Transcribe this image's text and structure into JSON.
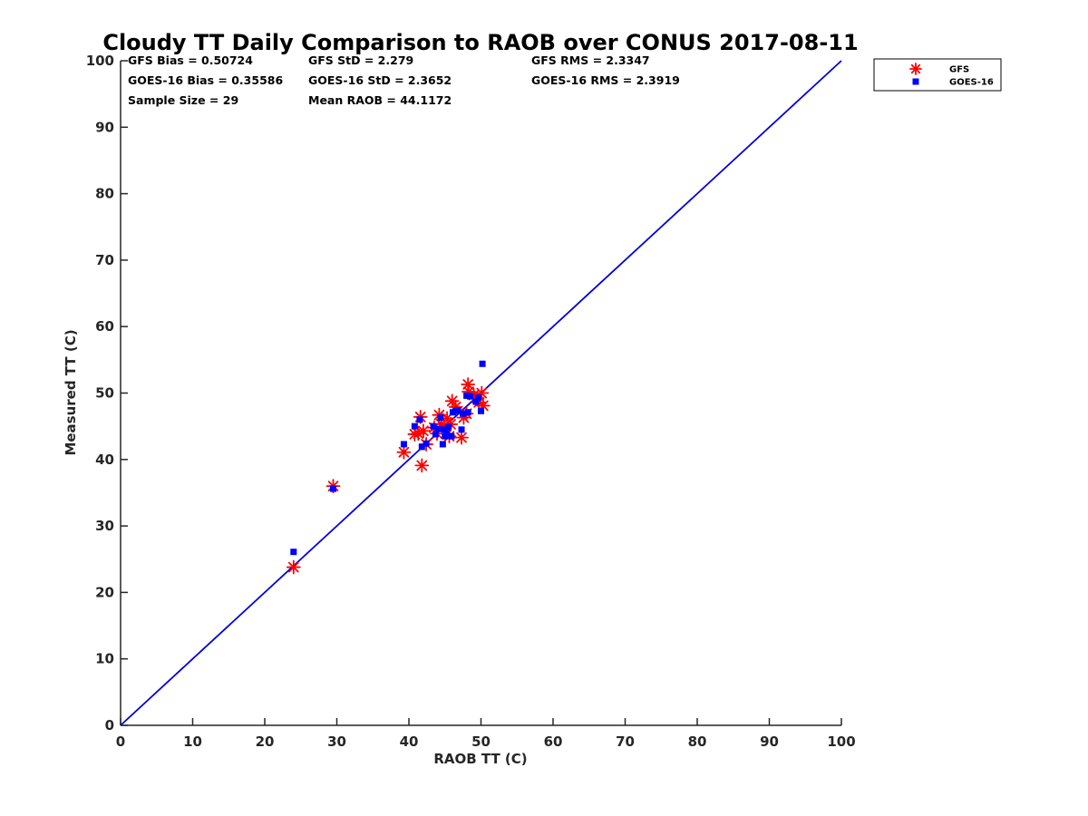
{
  "chart_data": {
    "type": "scatter",
    "title": "Cloudy TT Daily Comparison to RAOB over CONUS 2017-08-11",
    "xlabel": "RAOB TT (C)",
    "ylabel": "Measured TT (C)",
    "xlim": [
      0,
      100
    ],
    "ylim": [
      0,
      100
    ],
    "xticks": [
      "0",
      "10",
      "20",
      "30",
      "40",
      "50",
      "60",
      "70",
      "80",
      "90",
      "100"
    ],
    "yticks": [
      "0",
      "10",
      "20",
      "30",
      "40",
      "50",
      "60",
      "70",
      "80",
      "90",
      "100"
    ],
    "grid": false,
    "legend_position": "top-right",
    "reference_line": {
      "x": [
        0,
        100
      ],
      "y": [
        0,
        100
      ],
      "color": "#0000dd"
    },
    "stats": [
      [
        "GFS Bias = 0.50724",
        "GFS StD = 2.279",
        "GFS RMS = 2.3347"
      ],
      [
        "GOES-16 Bias = 0.35586",
        "GOES-16 StD = 2.3652",
        "GOES-16 RMS = 2.3919"
      ],
      [
        "Sample Size = 29",
        "Mean RAOB = 44.1172",
        ""
      ]
    ],
    "series": [
      {
        "name": "GFS",
        "marker": "asterisk",
        "color": "#ff0000",
        "points": [
          [
            24.0,
            23.8
          ],
          [
            29.5,
            36.0
          ],
          [
            39.3,
            41.1
          ],
          [
            40.8,
            43.8
          ],
          [
            41.3,
            43.9
          ],
          [
            41.6,
            46.4
          ],
          [
            41.8,
            39.1
          ],
          [
            42.0,
            44.3
          ],
          [
            42.4,
            42.3
          ],
          [
            43.5,
            44.8
          ],
          [
            44.2,
            46.7
          ],
          [
            44.5,
            45.3
          ],
          [
            45.0,
            44.9
          ],
          [
            45.6,
            43.5
          ],
          [
            45.8,
            45.3
          ],
          [
            46.0,
            48.8
          ],
          [
            46.5,
            47.9
          ],
          [
            47.3,
            43.3
          ],
          [
            47.6,
            46.3
          ],
          [
            48.0,
            46.9
          ],
          [
            48.2,
            51.3
          ],
          [
            48.3,
            50.2
          ],
          [
            49.5,
            49.2
          ],
          [
            49.7,
            48.6
          ],
          [
            50.1,
            50.0
          ],
          [
            50.3,
            48.1
          ],
          [
            43.9,
            43.9
          ],
          [
            45.3,
            46.2
          ],
          [
            49.0,
            49.7
          ]
        ]
      },
      {
        "name": "GOES-16",
        "marker": "square",
        "color": "#0000ff",
        "points": [
          [
            24.0,
            26.1
          ],
          [
            29.5,
            35.6
          ],
          [
            39.3,
            42.3
          ],
          [
            40.8,
            45.0
          ],
          [
            41.5,
            46.0
          ],
          [
            41.8,
            41.9
          ],
          [
            42.4,
            42.4
          ],
          [
            43.4,
            45.0
          ],
          [
            43.7,
            43.8
          ],
          [
            44.4,
            46.3
          ],
          [
            44.7,
            42.3
          ],
          [
            44.9,
            44.5
          ],
          [
            45.3,
            43.9
          ],
          [
            45.5,
            44.9
          ],
          [
            45.9,
            43.5
          ],
          [
            46.1,
            47.1
          ],
          [
            46.8,
            47.4
          ],
          [
            47.3,
            44.5
          ],
          [
            47.5,
            46.9
          ],
          [
            48.2,
            47.1
          ],
          [
            48.5,
            49.5
          ],
          [
            49.3,
            48.7
          ],
          [
            49.6,
            49.3
          ],
          [
            50.0,
            47.3
          ],
          [
            50.2,
            54.4
          ],
          [
            44.0,
            44.6
          ],
          [
            45.0,
            43.5
          ],
          [
            46.5,
            47.3
          ],
          [
            48.0,
            49.6
          ]
        ]
      }
    ]
  }
}
